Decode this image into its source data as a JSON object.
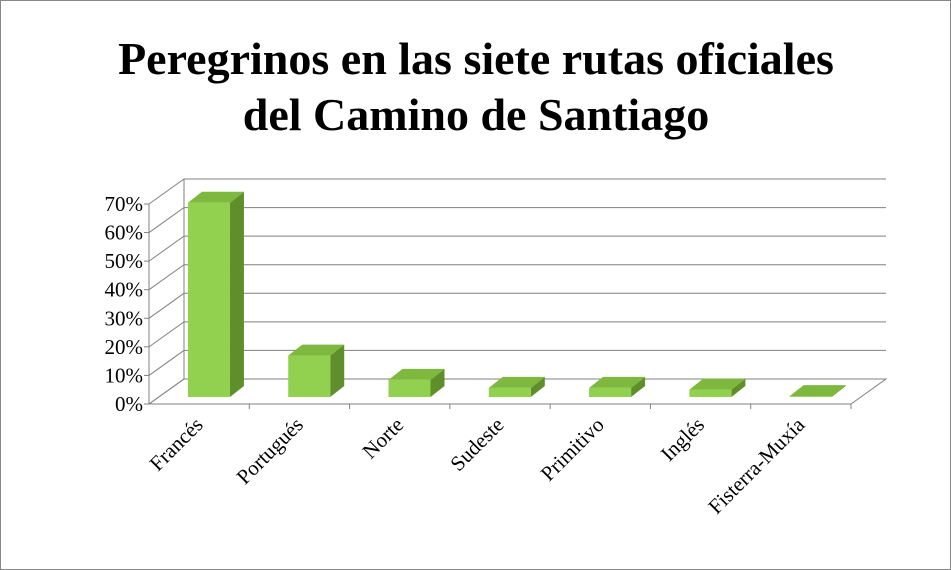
{
  "chart_data": {
    "type": "bar3d",
    "title": "Peregrinos en las siete rutas oficiales del Camino de Santiago",
    "categories": [
      "Francés",
      "Portugués",
      "Norte",
      "Sudeste",
      "Primitivo",
      "Inglés",
      "Fisterra-Muxía"
    ],
    "values": [
      68,
      14.5,
      6,
      3.2,
      3.2,
      2.6,
      0.3
    ],
    "color": "#92d050",
    "ylim": [
      0,
      70
    ],
    "yticks": [
      {
        "value": 0,
        "label": "0%"
      },
      {
        "value": 10,
        "label": "10%"
      },
      {
        "value": 20,
        "label": "20%"
      },
      {
        "value": 30,
        "label": "30%"
      },
      {
        "value": 40,
        "label": "40%"
      },
      {
        "value": 50,
        "label": "50%"
      },
      {
        "value": 60,
        "label": "60%"
      },
      {
        "value": 70,
        "label": "70%"
      }
    ],
    "grid": true
  }
}
